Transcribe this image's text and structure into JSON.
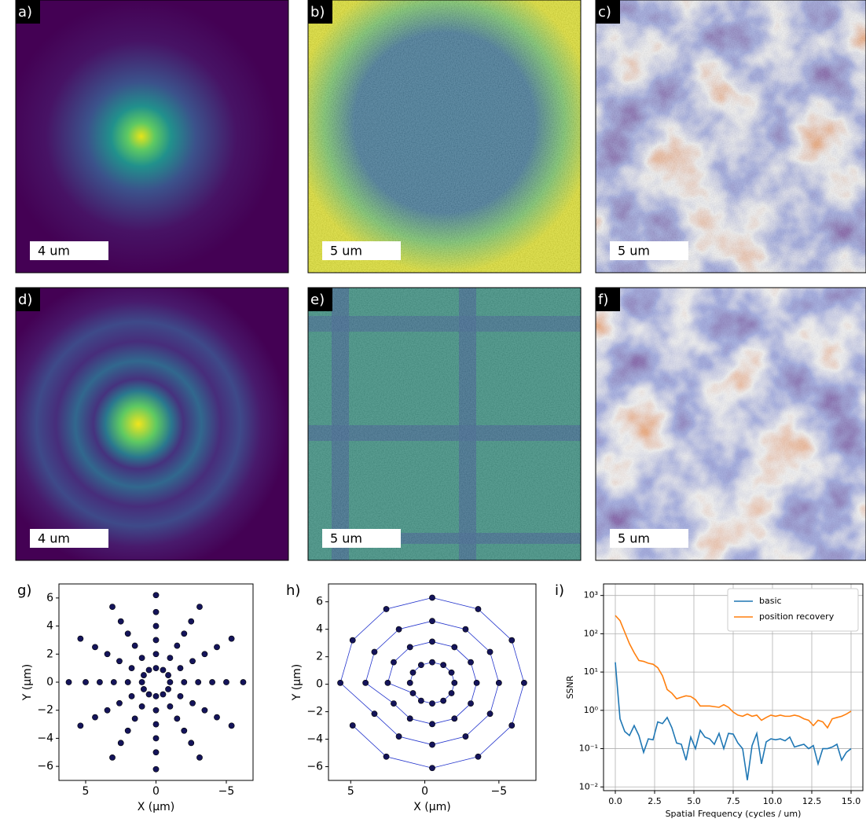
{
  "panels": [
    {
      "label": "a)",
      "scale_bar": "4 um"
    },
    {
      "label": "b)",
      "scale_bar": "5 um"
    },
    {
      "label": "c)",
      "scale_bar": "5 um"
    },
    {
      "label": "d)",
      "scale_bar": "4 um"
    },
    {
      "label": "e)",
      "scale_bar": "5 um"
    },
    {
      "label": "f)",
      "scale_bar": "5 um"
    }
  ],
  "chart_data": [
    {
      "type": "scatter",
      "panel_label": "g)",
      "xlabel": "X (μm)",
      "ylabel": "Y (μm)",
      "color": "#14145a",
      "line": false,
      "x": [
        1,
        0.87,
        0.5,
        0,
        -0.5,
        -0.87,
        -1,
        -0.87,
        -0.5,
        0,
        0.5,
        0.87,
        2,
        1.73,
        1,
        0,
        -1,
        -1.73,
        -2,
        -1.73,
        -1,
        0,
        1,
        1.73,
        3,
        2.6,
        1.5,
        0,
        -1.5,
        -2.6,
        -3,
        -2.6,
        -1.5,
        0,
        1.5,
        2.6,
        4,
        3.46,
        2,
        0,
        -2,
        -3.46,
        -4,
        -3.46,
        -2,
        0,
        2,
        3.46,
        5,
        4.33,
        2.5,
        0,
        -2.5,
        -4.33,
        -5,
        -4.33,
        -2.5,
        0,
        2.5,
        4.33,
        6.2,
        5.37,
        3.1,
        0,
        -3.1,
        -5.37,
        -6.2,
        -5.37,
        -3.1,
        0,
        3.1,
        5.37
      ],
      "values": [
        0,
        0.5,
        0.87,
        1,
        0.87,
        0.5,
        0,
        -0.5,
        -0.87,
        -1,
        -0.87,
        -0.5,
        0,
        1,
        1.73,
        2,
        1.73,
        1,
        0,
        -1,
        -1.73,
        -2,
        -1.73,
        -1,
        0,
        1.5,
        2.6,
        3,
        2.6,
        1.5,
        0,
        -1.5,
        -2.6,
        -3,
        -2.6,
        -1.5,
        0,
        2,
        3.46,
        4,
        3.46,
        2,
        0,
        -2,
        -3.46,
        -4,
        -3.46,
        -2,
        0,
        2.5,
        4.33,
        5,
        4.33,
        2.5,
        0,
        -2.5,
        -4.33,
        -5,
        -4.33,
        -2.5,
        0,
        3.1,
        5.37,
        6.2,
        5.37,
        3.1,
        0,
        -3.1,
        -5.37,
        -6.2,
        -5.37,
        -3.1
      ],
      "xlim": [
        6.9,
        -6.9
      ],
      "ylim": [
        -7,
        7
      ],
      "xticks": [
        5,
        0,
        {
          "value": -5,
          "label": "−5"
        }
      ],
      "yticks": [
        {
          "value": -6,
          "label": "−6"
        },
        {
          "value": -4,
          "label": "−4"
        },
        {
          "value": -2,
          "label": "−2"
        },
        0,
        2,
        4,
        6
      ]
    },
    {
      "type": "scatter",
      "panel_label": "h)",
      "xlabel": "X (μm)",
      "ylabel": "Y (μm)",
      "color": "#14145a",
      "line": true,
      "x": [
        1,
        0.8,
        0.25,
        -0.5,
        -1.25,
        -1.8,
        -2,
        -1.8,
        -1.25,
        -0.5,
        0.25,
        0.8,
        2.5,
        2.1,
        1,
        -0.5,
        -2,
        -3.1,
        -3.5,
        -3.1,
        -2,
        -0.5,
        1,
        2.1,
        4,
        3.4,
        1.75,
        -0.5,
        -2.75,
        -4.4,
        -5,
        -4.4,
        -2.75,
        -0.5,
        1.75,
        3.4,
        5.7,
        4.87,
        2.6,
        -0.5,
        -3.6,
        -5.87,
        -6.7,
        -5.87,
        -3.6,
        -0.5,
        2.6,
        4.87
      ],
      "values": [
        0.1,
        0.85,
        1.4,
        1.6,
        1.4,
        0.85,
        0.1,
        -0.65,
        -1.2,
        -1.4,
        -1.2,
        -0.65,
        0.1,
        1.6,
        2.7,
        3.1,
        2.7,
        1.6,
        0.1,
        -1.4,
        -2.5,
        -2.9,
        -2.5,
        -1.4,
        0.1,
        2.35,
        4,
        4.6,
        4,
        2.35,
        0.1,
        -2.15,
        -3.8,
        -4.4,
        -3.8,
        -2.15,
        0.1,
        3.2,
        5.47,
        6.3,
        5.47,
        3.2,
        0.1,
        -3,
        -5.27,
        -6.1,
        -5.27,
        -3
      ],
      "xlim": [
        6.5,
        -7.5
      ],
      "ylim": [
        -7,
        7.3
      ],
      "xticks": [
        5,
        0,
        {
          "value": -5,
          "label": "−5"
        }
      ],
      "yticks": [
        {
          "value": -6,
          "label": "−6"
        },
        {
          "value": -4,
          "label": "−4"
        },
        {
          "value": -2,
          "label": "−2"
        },
        0,
        2,
        4,
        6
      ]
    },
    {
      "type": "line",
      "panel_label": "i)",
      "xlabel": "Spatial Frequency (cycles / um)",
      "ylabel": "SSNR",
      "log_y": true,
      "grid": true,
      "legend": "upper right",
      "x": [
        0,
        0.3,
        0.6,
        0.9,
        1.2,
        1.5,
        1.8,
        2.1,
        2.4,
        2.7,
        3,
        3.3,
        3.6,
        3.9,
        4.2,
        4.5,
        4.8,
        5.1,
        5.4,
        5.7,
        6,
        6.3,
        6.6,
        6.9,
        7.2,
        7.5,
        7.8,
        8.1,
        8.4,
        8.7,
        9,
        9.3,
        9.6,
        9.9,
        10.2,
        10.5,
        10.8,
        11.1,
        11.4,
        11.7,
        12,
        12.3,
        12.6,
        12.9,
        13.2,
        13.5,
        13.8,
        14.1,
        14.4,
        14.7,
        15
      ],
      "series": [
        {
          "name": "basic",
          "color": "#1f77b4",
          "values": [
            18,
            0.6,
            0.28,
            0.22,
            0.4,
            0.22,
            0.08,
            0.18,
            0.17,
            0.5,
            0.45,
            0.65,
            0.35,
            0.14,
            0.13,
            0.05,
            0.2,
            0.1,
            0.3,
            0.2,
            0.18,
            0.13,
            0.25,
            0.1,
            0.25,
            0.24,
            0.14,
            0.1,
            0.015,
            0.12,
            0.25,
            0.04,
            0.15,
            0.18,
            0.17,
            0.18,
            0.16,
            0.2,
            0.11,
            0.12,
            0.13,
            0.1,
            0.12,
            0.04,
            0.1,
            0.1,
            0.11,
            0.13,
            0.05,
            0.08,
            0.1
          ]
        },
        {
          "name": "position recovery",
          "color": "#ff7f0e",
          "values": [
            300,
            220,
            110,
            55,
            32,
            20,
            19,
            17,
            16,
            13,
            8,
            3.5,
            2.8,
            2,
            2.2,
            2.4,
            2.3,
            1.9,
            1.3,
            1.3,
            1.3,
            1.25,
            1.2,
            1.4,
            1.2,
            0.9,
            0.75,
            0.7,
            0.8,
            0.7,
            0.75,
            0.55,
            0.65,
            0.75,
            0.7,
            0.75,
            0.7,
            0.7,
            0.75,
            0.7,
            0.6,
            0.55,
            0.4,
            0.55,
            0.5,
            0.35,
            0.6,
            0.65,
            0.7,
            0.8,
            0.95
          ]
        }
      ],
      "xlim": [
        -0.75,
        15.75
      ],
      "ylim": [
        0.008,
        2000
      ],
      "xticks": [
        {
          "value": 0,
          "label": "0.0"
        },
        2.5,
        {
          "value": 5,
          "label": "5.0"
        },
        7.5,
        {
          "value": 10,
          "label": "10.0"
        },
        12.5,
        {
          "value": 15,
          "label": "15.0"
        }
      ],
      "yticks": [
        {
          "value": 0.01,
          "label": "10⁻²"
        },
        {
          "value": 0.1,
          "label": "10⁻¹"
        },
        {
          "value": 1,
          "label": "10⁰"
        },
        {
          "value": 10,
          "label": "10¹"
        },
        {
          "value": 100,
          "label": "10²"
        },
        {
          "value": 1000,
          "label": "10³"
        }
      ]
    }
  ]
}
